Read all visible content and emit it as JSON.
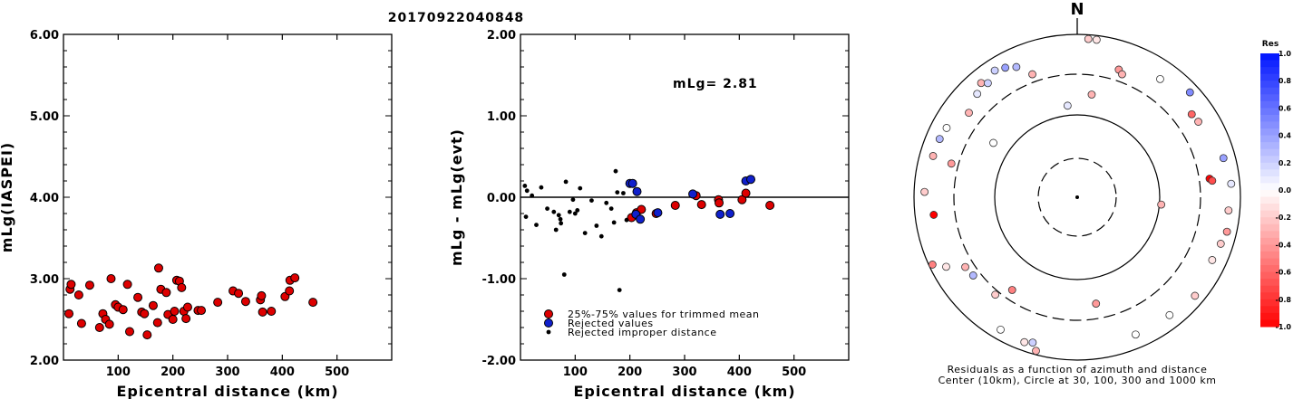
{
  "figure_title": "20170922040848",
  "magnitude_label": "mLg= 2.81",
  "legend": {
    "trimmed": "25%-75% values for trimmed mean",
    "rejected": "Rejected values",
    "improper": "Rejected improper distance"
  },
  "colors": {
    "red": "#dd0000",
    "blue": "#1020cc",
    "black": "#000000"
  },
  "polar": {
    "north_label": "N",
    "caption_line1": "Residuals as a function of azimuth and distance",
    "caption_line2": "Center (10km), Circle at 30, 100, 300 and 1000 km",
    "colorbar_title": "Res",
    "colorbar_ticks": [
      "1.0",
      "0.8",
      "0.6",
      "0.4",
      "0.2",
      "0.0",
      "-0.2",
      "-0.4",
      "-0.6",
      "-0.8",
      "-1.0"
    ]
  },
  "chart_data": [
    {
      "type": "scatter",
      "xlabel": "Epicentral distance (km)",
      "ylabel": "mLg(IASPEI)",
      "xlim": [
        0,
        600
      ],
      "ylim": [
        2.0,
        6.0
      ],
      "x_ticks": [
        "100",
        "200",
        "300",
        "400",
        "500"
      ],
      "y_ticks": [
        "2.00",
        "3.00",
        "4.00",
        "5.00",
        "6.00"
      ],
      "points": [
        [
          10,
          2.57
        ],
        [
          12,
          2.87
        ],
        [
          14,
          2.93
        ],
        [
          28,
          2.8
        ],
        [
          33,
          2.45
        ],
        [
          48,
          2.92
        ],
        [
          66,
          2.4
        ],
        [
          72,
          2.57
        ],
        [
          77,
          2.5
        ],
        [
          84,
          2.44
        ],
        [
          87,
          3.0
        ],
        [
          95,
          2.68
        ],
        [
          100,
          2.65
        ],
        [
          109,
          2.62
        ],
        [
          117,
          2.93
        ],
        [
          121,
          2.35
        ],
        [
          136,
          2.77
        ],
        [
          143,
          2.59
        ],
        [
          148,
          2.57
        ],
        [
          153,
          2.31
        ],
        [
          164,
          2.67
        ],
        [
          172,
          2.46
        ],
        [
          174,
          3.13
        ],
        [
          178,
          2.87
        ],
        [
          188,
          2.83
        ],
        [
          191,
          2.56
        ],
        [
          200,
          2.5
        ],
        [
          203,
          2.6
        ],
        [
          207,
          2.98
        ],
        [
          212,
          2.97
        ],
        [
          216,
          2.89
        ],
        [
          220,
          2.6
        ],
        [
          224,
          2.51
        ],
        [
          227,
          2.65
        ],
        [
          246,
          2.61
        ],
        [
          252,
          2.61
        ],
        [
          282,
          2.71
        ],
        [
          310,
          2.85
        ],
        [
          320,
          2.82
        ],
        [
          333,
          2.72
        ],
        [
          360,
          2.74
        ],
        [
          362,
          2.79
        ],
        [
          364,
          2.59
        ],
        [
          380,
          2.6
        ],
        [
          405,
          2.78
        ],
        [
          413,
          2.85
        ],
        [
          414,
          2.98
        ],
        [
          423,
          3.01
        ],
        [
          456,
          2.71
        ]
      ]
    },
    {
      "type": "scatter",
      "xlabel": "Epicentral distance (km)",
      "ylabel": "mLg - mLg(evt)",
      "xlim": [
        0,
        600
      ],
      "ylim": [
        -2.0,
        2.0
      ],
      "x_ticks": [
        "100",
        "200",
        "300",
        "400",
        "500"
      ],
      "y_ticks": [
        "-2.00",
        "-1.00",
        "0.00",
        "1.00",
        "2.00"
      ],
      "reference_line": 0.0,
      "series": [
        {
          "name": "25%-75% values for trimmed mean",
          "marker": "red",
          "points": [
            [
              203,
              -0.25
            ],
            [
              212,
              -0.19
            ],
            [
              221,
              -0.15
            ],
            [
              248,
              -0.2
            ],
            [
              283,
              -0.1
            ],
            [
              321,
              0.02
            ],
            [
              331,
              -0.09
            ],
            [
              362,
              -0.03
            ],
            [
              363,
              -0.07
            ],
            [
              405,
              -0.03
            ],
            [
              412,
              0.05
            ],
            [
              456,
              -0.1
            ]
          ]
        },
        {
          "name": "Rejected values",
          "marker": "blue",
          "points": [
            [
              200,
              0.17
            ],
            [
              205,
              0.17
            ],
            [
              213,
              0.07
            ],
            [
              211,
              -0.21
            ],
            [
              219,
              -0.27
            ],
            [
              251,
              -0.19
            ],
            [
              315,
              0.04
            ],
            [
              365,
              -0.21
            ],
            [
              383,
              -0.2
            ],
            [
              412,
              0.2
            ],
            [
              421,
              0.22
            ]
          ]
        },
        {
          "name": "Rejected improper distance",
          "marker": "black",
          "points": [
            [
              8,
              0.14
            ],
            [
              12,
              0.08
            ],
            [
              21,
              0.02
            ],
            [
              10,
              -0.24
            ],
            [
              29,
              -0.34
            ],
            [
              38,
              0.12
            ],
            [
              49,
              -0.14
            ],
            [
              61,
              -0.18
            ],
            [
              65,
              -0.4
            ],
            [
              70,
              -0.22
            ],
            [
              73,
              -0.27
            ],
            [
              74,
              -0.32
            ],
            [
              80,
              -0.95
            ],
            [
              83,
              0.19
            ],
            [
              90,
              -0.18
            ],
            [
              96,
              -0.03
            ],
            [
              100,
              -0.2
            ],
            [
              104,
              -0.16
            ],
            [
              109,
              0.11
            ],
            [
              118,
              -0.44
            ],
            [
              130,
              -0.04
            ],
            [
              139,
              -0.35
            ],
            [
              148,
              -0.48
            ],
            [
              157,
              -0.07
            ],
            [
              166,
              -0.14
            ],
            [
              171,
              -0.31
            ],
            [
              174,
              0.32
            ],
            [
              177,
              0.06
            ],
            [
              181,
              -1.14
            ],
            [
              188,
              0.05
            ],
            [
              194,
              -0.28
            ]
          ]
        }
      ]
    },
    {
      "type": "polar-scatter",
      "center_km": 10,
      "rings_km": [
        30,
        100,
        300,
        1000
      ],
      "color_scale": {
        "min": -1.0,
        "max": 1.0,
        "positive": "blue",
        "negative": "red"
      },
      "points": [
        {
          "az": 4,
          "dist": 880,
          "res": -0.2
        },
        {
          "az": 7,
          "dist": 880,
          "res": -0.1
        },
        {
          "az": 8,
          "dist": 178,
          "res": -0.3
        },
        {
          "az": 18,
          "dist": 420,
          "res": -0.4
        },
        {
          "az": 20,
          "dist": 380,
          "res": -0.3
        },
        {
          "az": 35,
          "dist": 570,
          "res": 0.0
        },
        {
          "az": 47,
          "dist": 760,
          "res": 0.5
        },
        {
          "az": 54,
          "dist": 520,
          "res": -0.6
        },
        {
          "az": 58,
          "dist": 540,
          "res": -0.3
        },
        {
          "az": 75,
          "dist": 700,
          "res": 0.4
        },
        {
          "az": 82,
          "dist": 410,
          "res": -1.0
        },
        {
          "az": 83,
          "dist": 440,
          "res": -0.7
        },
        {
          "az": 85,
          "dist": 770,
          "res": 0.1
        },
        {
          "az": 95,
          "dist": 105,
          "res": -0.3
        },
        {
          "az": 95,
          "dist": 710,
          "res": -0.2
        },
        {
          "az": 103,
          "dist": 750,
          "res": -0.4
        },
        {
          "az": 108,
          "dist": 690,
          "res": -0.2
        },
        {
          "az": 115,
          "dist": 650,
          "res": -0.1
        },
        {
          "az": 130,
          "dist": 750,
          "res": -0.2
        },
        {
          "az": 142,
          "dist": 670,
          "res": 0.0
        },
        {
          "az": 157,
          "dist": 660,
          "res": 0.0
        },
        {
          "az": 170,
          "dist": 200,
          "res": -0.4
        },
        {
          "az": 195,
          "dist": 890,
          "res": -0.3
        },
        {
          "az": 197,
          "dist": 720,
          "res": 0.2
        },
        {
          "az": 200,
          "dist": 770,
          "res": -0.1
        },
        {
          "az": 210,
          "dist": 740,
          "res": 0.0
        },
        {
          "az": 215,
          "dist": 230,
          "res": -0.5
        },
        {
          "az": 220,
          "dist": 340,
          "res": -0.2
        },
        {
          "az": 233,
          "dist": 370,
          "res": 0.3
        },
        {
          "az": 238,
          "dist": 390,
          "res": -0.3
        },
        {
          "az": 242,
          "dist": 640,
          "res": -0.1
        },
        {
          "az": 245,
          "dist": 900,
          "res": -0.5
        },
        {
          "az": 263,
          "dist": 570,
          "res": -1.0
        },
        {
          "az": 272,
          "dist": 730,
          "res": -0.2
        },
        {
          "az": 285,
          "dist": 370,
          "res": -0.4
        },
        {
          "az": 286,
          "dist": 670,
          "res": -0.3
        },
        {
          "az": 293,
          "dist": 660,
          "res": 0.3
        },
        {
          "az": 298,
          "dist": 630,
          "res": 0.0
        },
        {
          "az": 303,
          "dist": 160,
          "res": 0.0
        },
        {
          "az": 308,
          "dist": 460,
          "res": -0.3
        },
        {
          "az": 316,
          "dist": 560,
          "res": 0.1
        },
        {
          "az": 320,
          "dist": 660,
          "res": -0.3
        },
        {
          "az": 322,
          "dist": 580,
          "res": 0.2
        },
        {
          "az": 327,
          "dist": 700,
          "res": 0.2
        },
        {
          "az": 331,
          "dist": 640,
          "res": 0.4
        },
        {
          "az": 335,
          "dist": 560,
          "res": 0.3
        },
        {
          "az": 340,
          "dist": 380,
          "res": -0.3
        },
        {
          "az": 354,
          "dist": 130,
          "res": 0.1
        }
      ]
    }
  ]
}
